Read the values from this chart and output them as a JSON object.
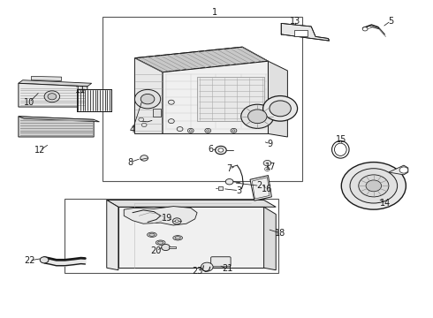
{
  "background_color": "#ffffff",
  "line_color": "#1a1a1a",
  "fig_width": 4.9,
  "fig_height": 3.6,
  "dpi": 100,
  "callouts": {
    "1": {
      "lp": [
        0.495,
        0.955
      ],
      "tp": [
        0.495,
        0.955
      ]
    },
    "2": {
      "lp": [
        0.595,
        0.415
      ],
      "tp": [
        0.53,
        0.425
      ]
    },
    "3": {
      "lp": [
        0.545,
        0.4
      ],
      "tp": [
        0.51,
        0.408
      ]
    },
    "4": {
      "lp": [
        0.31,
        0.59
      ],
      "tp": [
        0.335,
        0.59
      ]
    },
    "5": {
      "lp": [
        0.9,
        0.93
      ],
      "tp": [
        0.875,
        0.91
      ]
    },
    "6": {
      "lp": [
        0.49,
        0.528
      ],
      "tp": [
        0.52,
        0.528
      ]
    },
    "7": {
      "lp": [
        0.53,
        0.47
      ],
      "tp": [
        0.545,
        0.48
      ]
    },
    "8": {
      "lp": [
        0.308,
        0.49
      ],
      "tp": [
        0.33,
        0.5
      ]
    },
    "9": {
      "lp": [
        0.62,
        0.545
      ],
      "tp": [
        0.6,
        0.558
      ]
    },
    "10": {
      "lp": [
        0.072,
        0.68
      ],
      "tp": [
        0.095,
        0.67
      ]
    },
    "11": {
      "lp": [
        0.185,
        0.71
      ],
      "tp": [
        0.2,
        0.7
      ]
    },
    "12": {
      "lp": [
        0.095,
        0.53
      ],
      "tp": [
        0.115,
        0.545
      ]
    },
    "13": {
      "lp": [
        0.685,
        0.93
      ],
      "tp": [
        0.68,
        0.912
      ]
    },
    "14": {
      "lp": [
        0.89,
        0.37
      ],
      "tp": [
        0.875,
        0.385
      ]
    },
    "15": {
      "lp": [
        0.79,
        0.56
      ],
      "tp": [
        0.79,
        0.54
      ]
    },
    "16": {
      "lp": [
        0.61,
        0.41
      ],
      "tp": [
        0.6,
        0.425
      ]
    },
    "17": {
      "lp": [
        0.618,
        0.475
      ],
      "tp": [
        0.618,
        0.465
      ]
    },
    "18": {
      "lp": [
        0.64,
        0.27
      ],
      "tp": [
        0.615,
        0.28
      ]
    },
    "19": {
      "lp": [
        0.388,
        0.31
      ],
      "tp": [
        0.405,
        0.302
      ]
    },
    "20": {
      "lp": [
        0.368,
        0.21
      ],
      "tp": [
        0.385,
        0.218
      ]
    },
    "21": {
      "lp": [
        0.52,
        0.155
      ],
      "tp": [
        0.5,
        0.165
      ]
    },
    "22": {
      "lp": [
        0.072,
        0.178
      ],
      "tp": [
        0.1,
        0.185
      ]
    },
    "23": {
      "lp": [
        0.465,
        0.148
      ],
      "tp": [
        0.48,
        0.158
      ]
    }
  }
}
